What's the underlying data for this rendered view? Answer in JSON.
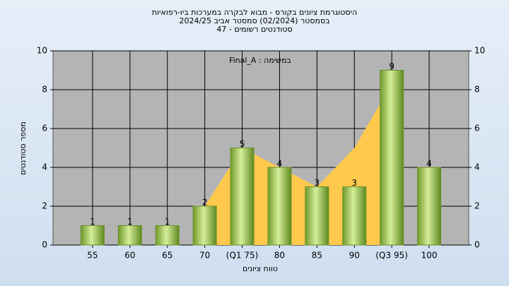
{
  "chart_data": {
    "type": "bar",
    "title": [
      "היסטוגרמת ציונים בקורס - מבוא לבקרה במערכות ביו-רפואיות",
      "בסמסטר  (02/2024)  סמסטר אביב 2024/25",
      "סטודנטים רשומים - 47"
    ],
    "annotation": "במשימה : Final_A",
    "x_label": "טווח ציונים",
    "y_label": "מספר סטודנטים",
    "categories": [
      "55",
      "60",
      "65",
      "70",
      "(Q1 75)",
      "80",
      "85",
      "90",
      "(Q3 95)",
      "100"
    ],
    "values": [
      1,
      1,
      1,
      2,
      5,
      4,
      3,
      3,
      9,
      4
    ],
    "color": "#8fb540",
    "area_values": [
      null,
      null,
      null,
      2,
      5,
      4,
      3,
      5,
      8.3,
      null
    ],
    "area_color": "#ffc94d",
    "ylim": [
      0,
      10
    ],
    "yticks": [
      0,
      2,
      4,
      6,
      8,
      10
    ],
    "y2lim": [
      0,
      10
    ],
    "y2ticks": [
      0,
      2,
      4,
      6,
      8,
      10
    ],
    "grid": true
  }
}
